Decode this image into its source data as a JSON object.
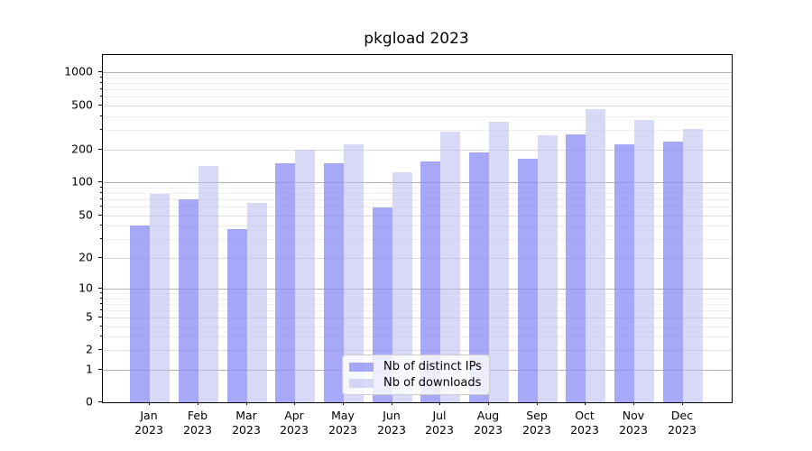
{
  "title": "pkgload 2023",
  "legend": {
    "items": [
      {
        "label": "Nb of distinct IPs",
        "series_key": "distinct_ips"
      },
      {
        "label": "Nb of downloads",
        "series_key": "downloads"
      }
    ]
  },
  "y_axis": {
    "tick_values": [
      0,
      1,
      2,
      5,
      10,
      20,
      50,
      100,
      200,
      500,
      1000
    ],
    "minor_tick_values": [
      3,
      4,
      6,
      7,
      8,
      9,
      30,
      40,
      60,
      70,
      80,
      90,
      300,
      400,
      600,
      700,
      800,
      900
    ]
  },
  "x_axis": {
    "months": [
      "Jan",
      "Feb",
      "Mar",
      "Apr",
      "May",
      "Jun",
      "Jul",
      "Aug",
      "Sep",
      "Oct",
      "Nov",
      "Dec"
    ],
    "year": "2023"
  },
  "colors": {
    "distinct_ips": "#8b8bf5",
    "downloads": "#b8b8f0",
    "grid_decade": "#b4b4b4",
    "grid_labeled": "#dcdcdc",
    "grid_minor": "#efefef",
    "axis": "#000000"
  },
  "chart_data": {
    "type": "bar",
    "title": "pkgload 2023",
    "categories": [
      "Jan 2023",
      "Feb 2023",
      "Mar 2023",
      "Apr 2023",
      "May 2023",
      "Jun 2023",
      "Jul 2023",
      "Aug 2023",
      "Sep 2023",
      "Oct 2023",
      "Nov 2023",
      "Dec 2023"
    ],
    "series": [
      {
        "name": "Nb of distinct IPs",
        "key": "distinct_ips",
        "values": [
          41,
          70,
          38,
          152,
          152,
          60,
          156,
          190,
          168,
          276,
          226,
          241
        ]
      },
      {
        "name": "Nb of downloads",
        "key": "downloads",
        "values": [
          79,
          142,
          66,
          200,
          226,
          124,
          296,
          362,
          273,
          470,
          373,
          310
        ]
      }
    ],
    "xlabel": "",
    "ylabel": "",
    "y_scale": "log1p",
    "y_ticks": [
      0,
      1,
      2,
      5,
      10,
      20,
      50,
      100,
      200,
      500,
      1000
    ],
    "ylim": [
      0,
      1440
    ],
    "grid": "horizontal",
    "legend_position": "inside lower-center"
  }
}
